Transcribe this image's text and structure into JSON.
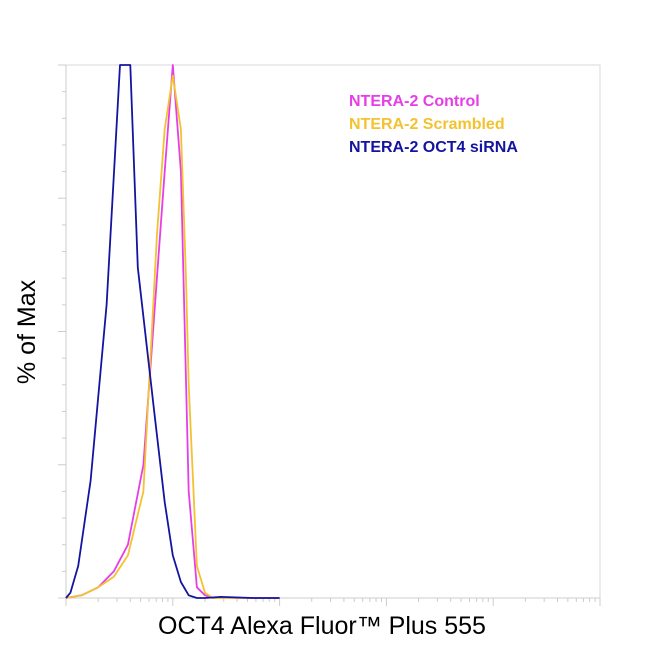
{
  "chart_data": {
    "type": "line",
    "title": "",
    "xlabel": "OCT4 Alexa Fluor™ Plus 555",
    "ylabel": "% of Max",
    "x_scale": "log",
    "xlim": [
      1,
      100000
    ],
    "ylim": [
      0,
      100
    ],
    "grid": false,
    "legend_placement": "top-right",
    "series": [
      {
        "name": "NTERA-2 Control",
        "color": "#e63ee6",
        "x": [
          1.0,
          1.4,
          2.0,
          2.8,
          3.8,
          5.3,
          7.1,
          8.4,
          10.0,
          11.9,
          14.1,
          16.8,
          20.0,
          23.7,
          31.6,
          56.2,
          100
        ],
        "y": [
          0,
          0.5,
          2,
          5,
          10,
          25,
          60,
          80,
          100,
          80,
          20,
          2,
          0.5,
          0,
          0,
          0,
          0
        ]
      },
      {
        "name": "NTERA-2 Scrambled",
        "color": "#f2c230",
        "x": [
          1.0,
          1.4,
          2.0,
          2.8,
          3.8,
          5.3,
          7.1,
          8.4,
          10.0,
          11.9,
          13.3,
          14.1,
          16.8,
          20.0,
          23.7,
          31.6,
          56.2,
          100
        ],
        "y": [
          0,
          0.5,
          2,
          4,
          8,
          20,
          68,
          88,
          98,
          88,
          60,
          40,
          6,
          1,
          0,
          0,
          0,
          0
        ]
      },
      {
        "name": "NTERA-2 OCT4 siRNA",
        "color": "#1414a0",
        "x": [
          1.0,
          1.1,
          1.3,
          1.7,
          2.4,
          3.2,
          4.0,
          4.7,
          6.7,
          8.4,
          10.0,
          11.9,
          14.1,
          16.8,
          20.0,
          28.2,
          56.2,
          100
        ],
        "y": [
          0,
          1,
          6,
          22,
          55,
          100,
          100,
          62,
          35,
          18,
          8,
          3,
          0.5,
          0,
          0,
          0.2,
          0,
          0
        ]
      }
    ]
  }
}
